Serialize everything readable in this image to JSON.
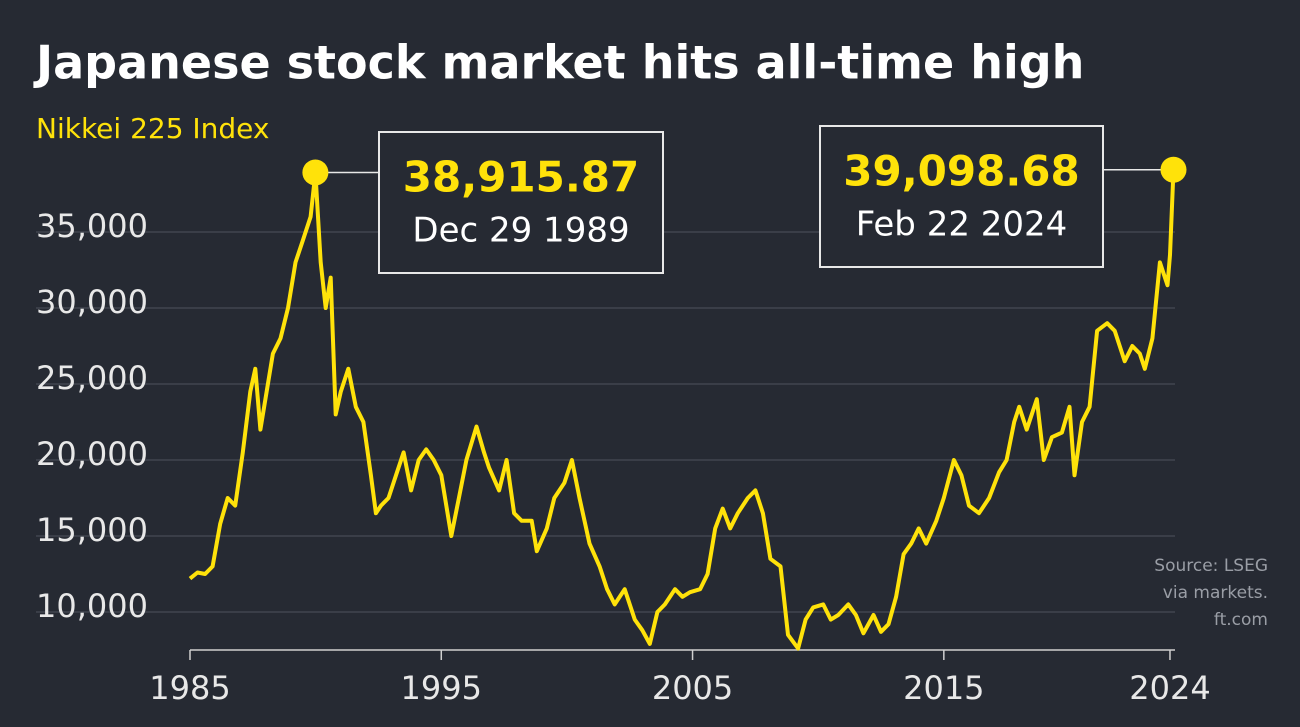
{
  "chart_data": {
    "type": "line",
    "title": "Japanese stock market hits all-time high",
    "subtitle": "Nikkei 225 Index",
    "color": "#ffe20a",
    "xlim": [
      1985,
      2024.2
    ],
    "xticks": [
      1985,
      1995,
      2005,
      2015,
      2024
    ],
    "ylim": [
      7500,
      40000
    ],
    "yticks": [
      {
        "value": 10000,
        "label": "10,000"
      },
      {
        "value": 15000,
        "label": "15,000"
      },
      {
        "value": 20000,
        "label": "20,000"
      },
      {
        "value": 25000,
        "label": "25,000"
      },
      {
        "value": 30000,
        "label": "30,000"
      },
      {
        "value": 35000,
        "label": "35,000"
      }
    ],
    "grid": true,
    "x": [
      1985.0,
      1985.3,
      1985.6,
      1985.9,
      1986.2,
      1986.5,
      1986.8,
      1987.1,
      1987.4,
      1987.6,
      1987.8,
      1988.0,
      1988.3,
      1988.6,
      1988.9,
      1989.2,
      1989.5,
      1989.8,
      1989.99,
      1990.2,
      1990.4,
      1990.6,
      1990.8,
      1991.0,
      1991.3,
      1991.6,
      1991.9,
      1992.2,
      1992.4,
      1992.6,
      1992.9,
      1993.2,
      1993.5,
      1993.8,
      1994.1,
      1994.4,
      1994.7,
      1995.0,
      1995.4,
      1995.7,
      1996.0,
      1996.4,
      1996.7,
      1996.9,
      1997.3,
      1997.6,
      1997.9,
      1998.2,
      1998.6,
      1998.8,
      1999.2,
      1999.5,
      1999.9,
      2000.2,
      2000.5,
      2000.9,
      2001.3,
      2001.6,
      2001.9,
      2002.3,
      2002.7,
      2003.0,
      2003.3,
      2003.6,
      2003.9,
      2004.3,
      2004.6,
      2004.9,
      2005.3,
      2005.6,
      2005.9,
      2006.2,
      2006.5,
      2006.8,
      2007.2,
      2007.5,
      2007.8,
      2008.1,
      2008.5,
      2008.8,
      2009.2,
      2009.5,
      2009.8,
      2010.2,
      2010.5,
      2010.8,
      2011.2,
      2011.5,
      2011.8,
      2012.2,
      2012.5,
      2012.8,
      2013.1,
      2013.4,
      2013.7,
      2014.0,
      2014.3,
      2014.7,
      2015.0,
      2015.4,
      2015.7,
      2016.0,
      2016.4,
      2016.8,
      2017.2,
      2017.5,
      2017.8,
      2018.0,
      2018.3,
      2018.7,
      2018.98,
      2019.3,
      2019.7,
      2020.0,
      2020.2,
      2020.5,
      2020.8,
      2021.1,
      2021.5,
      2021.8,
      2022.2,
      2022.5,
      2022.8,
      2023.0,
      2023.3,
      2023.6,
      2023.9,
      2024.0,
      2024.14
    ],
    "values": [
      12200,
      12600,
      12500,
      13000,
      15800,
      17500,
      17000,
      20500,
      24500,
      26000,
      22000,
      24000,
      27000,
      28000,
      30000,
      33000,
      34500,
      36000,
      38915.87,
      33000,
      30000,
      32000,
      23000,
      24500,
      26000,
      23500,
      22500,
      19000,
      16500,
      17000,
      17500,
      19000,
      20500,
      18000,
      20000,
      20700,
      20000,
      19000,
      15000,
      17500,
      20000,
      22200,
      20500,
      19500,
      18000,
      20000,
      16500,
      16000,
      16000,
      14000,
      15500,
      17500,
      18500,
      20000,
      17500,
      14500,
      13000,
      11500,
      10500,
      11500,
      9500,
      8800,
      7900,
      10000,
      10500,
      11500,
      11000,
      11300,
      11500,
      12500,
      15500,
      16800,
      15500,
      16500,
      17500,
      18000,
      16500,
      13500,
      13000,
      8500,
      7600,
      9500,
      10300,
      10500,
      9500,
      9800,
      10500,
      9800,
      8600,
      9800,
      8700,
      9200,
      11000,
      13800,
      14500,
      15500,
      14500,
      16000,
      17500,
      20000,
      19000,
      17000,
      16500,
      17500,
      19200,
      20000,
      22500,
      23500,
      22000,
      24000,
      20000,
      21500,
      21800,
      23500,
      19000,
      22500,
      23500,
      28500,
      29000,
      28500,
      26500,
      27500,
      27000,
      26000,
      28000,
      33000,
      31500,
      33500,
      39098.68
    ],
    "highlights": [
      {
        "label": "38,915.87",
        "date": "Dec 29 1989",
        "x": 1989.99,
        "value": 38915.87
      },
      {
        "label": "39,098.68",
        "date": "Feb 22 2024",
        "x": 2024.14,
        "value": 39098.68
      }
    ],
    "source": [
      "Source: LSEG",
      "via markets.",
      "ft.com"
    ]
  }
}
